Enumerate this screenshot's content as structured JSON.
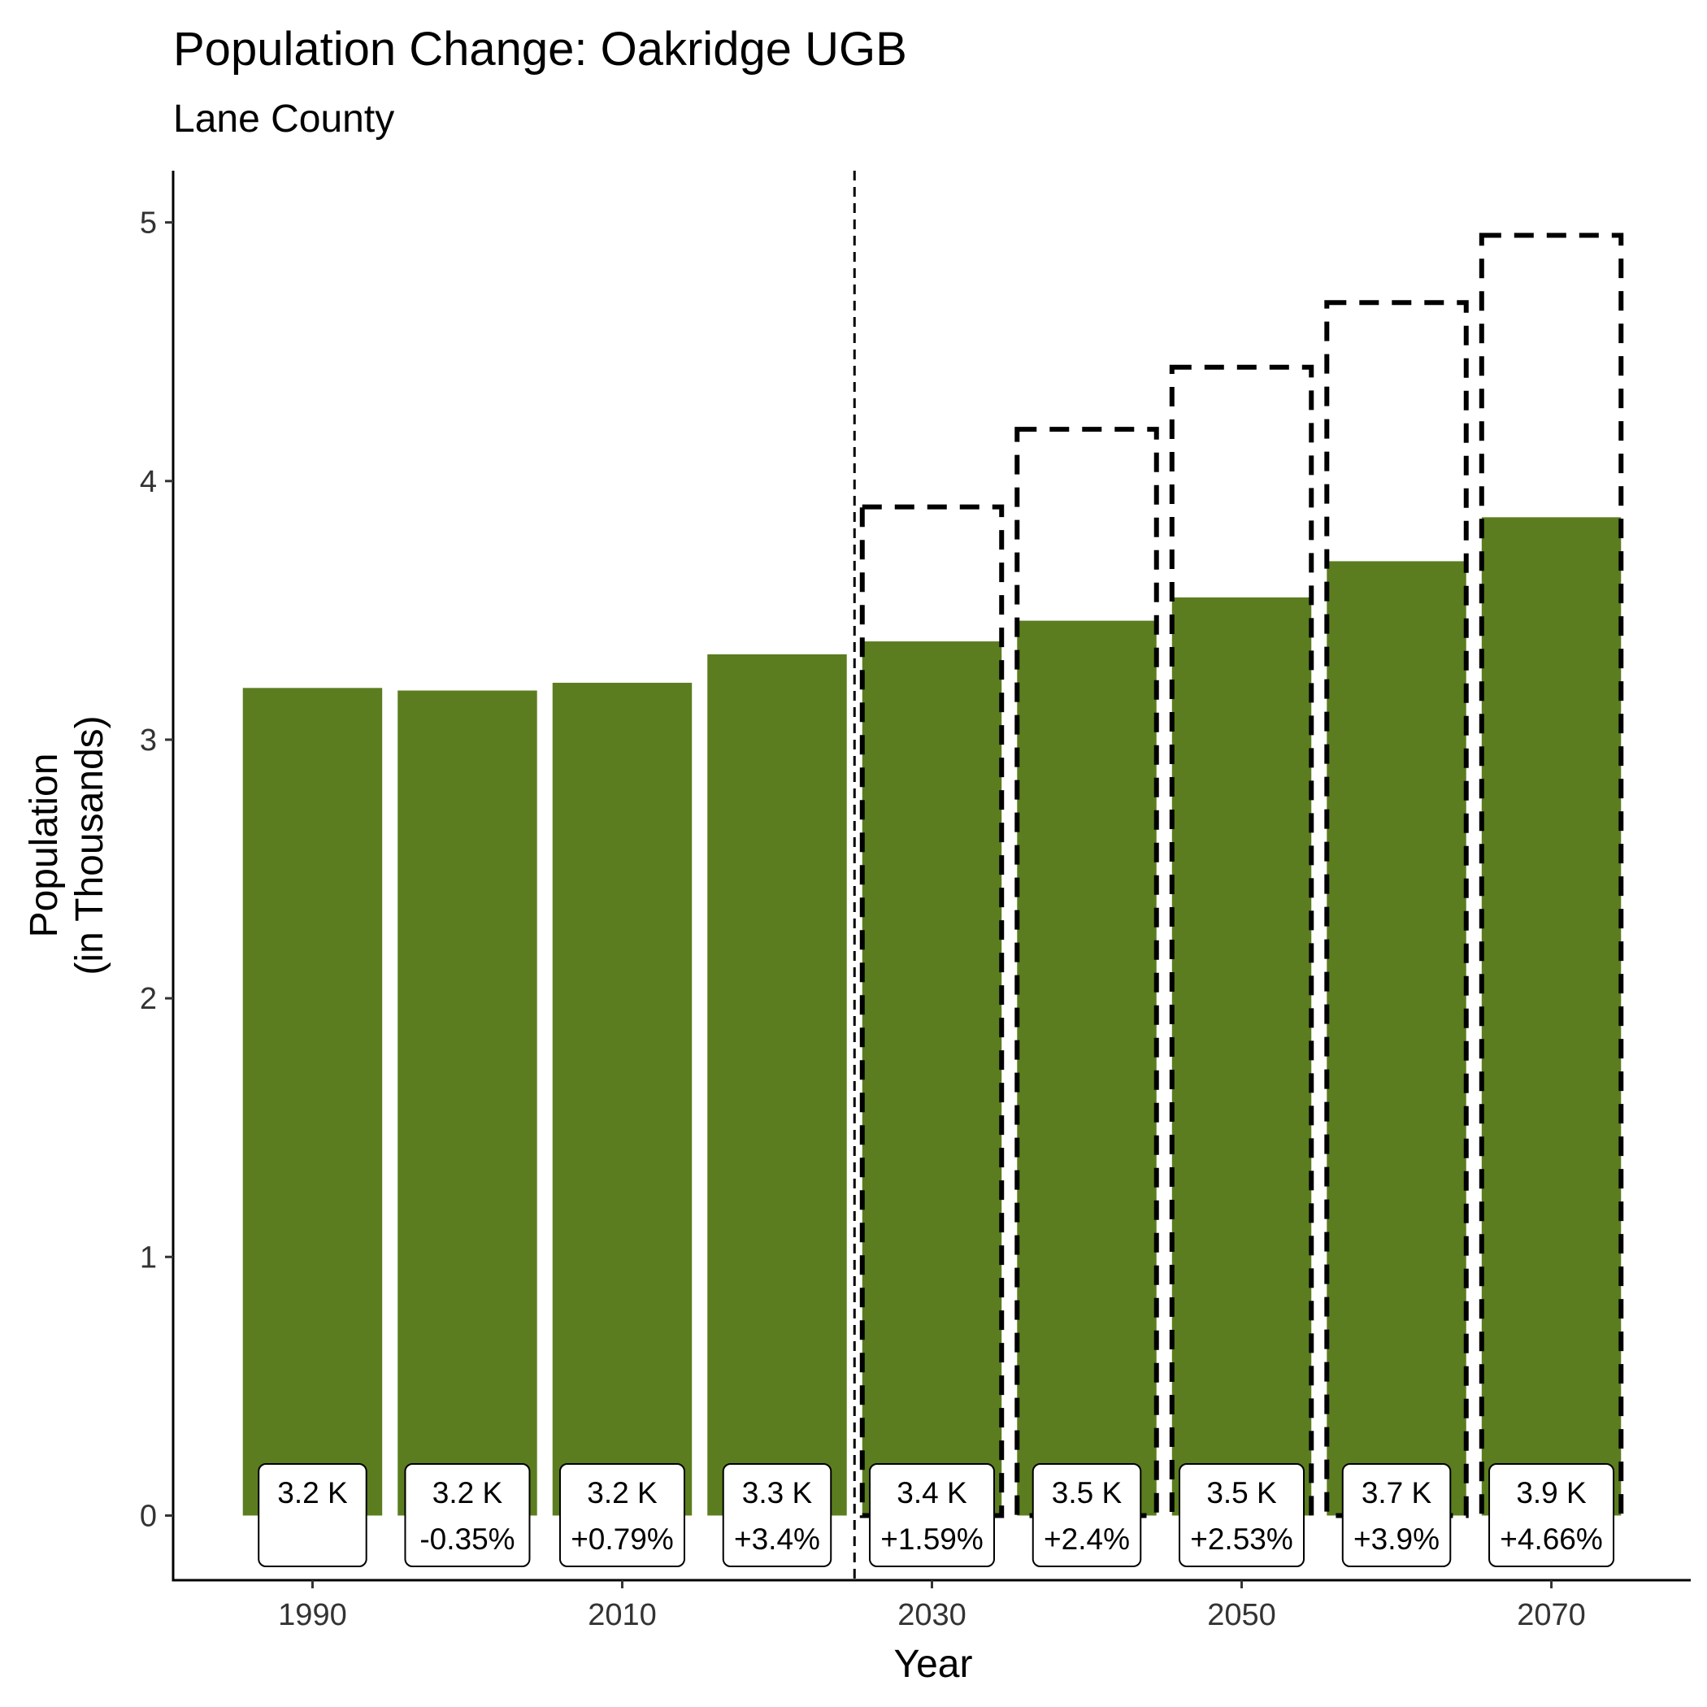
{
  "chart_data": {
    "type": "bar",
    "title": "Population Change: Oakridge UGB",
    "subtitle": "Lane County",
    "xlabel": "Year",
    "ylabel": [
      "Population",
      "(in Thousands)"
    ],
    "x": [
      1990,
      2000,
      2010,
      2020,
      2030,
      2040,
      2050,
      2060,
      2070
    ],
    "x_tick_labels": [
      "1990",
      "2010",
      "2030",
      "2050",
      "2070"
    ],
    "x_ticks": [
      1990,
      2010,
      2030,
      2050,
      2070
    ],
    "y_ticks": [
      0,
      1,
      2,
      3,
      4,
      5
    ],
    "y_tick_labels": [
      "0",
      "1",
      "2",
      "3",
      "4",
      "5"
    ],
    "xlim": [
      1981,
      2079
    ],
    "ylim": [
      -0.25,
      5.2
    ],
    "bar_width_years": 9,
    "grid": false,
    "series": [
      {
        "values": [
          3.2,
          3.19,
          3.22,
          3.33,
          3.38,
          3.46,
          3.55,
          3.69,
          3.86
        ],
        "color": "#5b7d1f"
      },
      {
        "style": "dashed-outline",
        "x": [
          2030,
          2040,
          2050,
          2060,
          2070
        ],
        "values": [
          3.9,
          4.2,
          4.44,
          4.69,
          4.95
        ],
        "color": "#000000"
      }
    ],
    "data_labels": [
      {
        "value": "3.2 K",
        "change": ""
      },
      {
        "value": "3.2 K",
        "change": "-0.35%"
      },
      {
        "value": "3.2 K",
        "change": "+0.79%"
      },
      {
        "value": "3.3 K",
        "change": "+3.4%"
      },
      {
        "value": "3.4 K",
        "change": "+1.59%"
      },
      {
        "value": "3.5 K",
        "change": "+2.4%"
      },
      {
        "value": "3.5 K",
        "change": "+2.53%"
      },
      {
        "value": "3.7 K",
        "change": "+3.9%"
      },
      {
        "value": "3.9 K",
        "change": "+4.66%"
      }
    ],
    "reference_line_x": 2025
  }
}
